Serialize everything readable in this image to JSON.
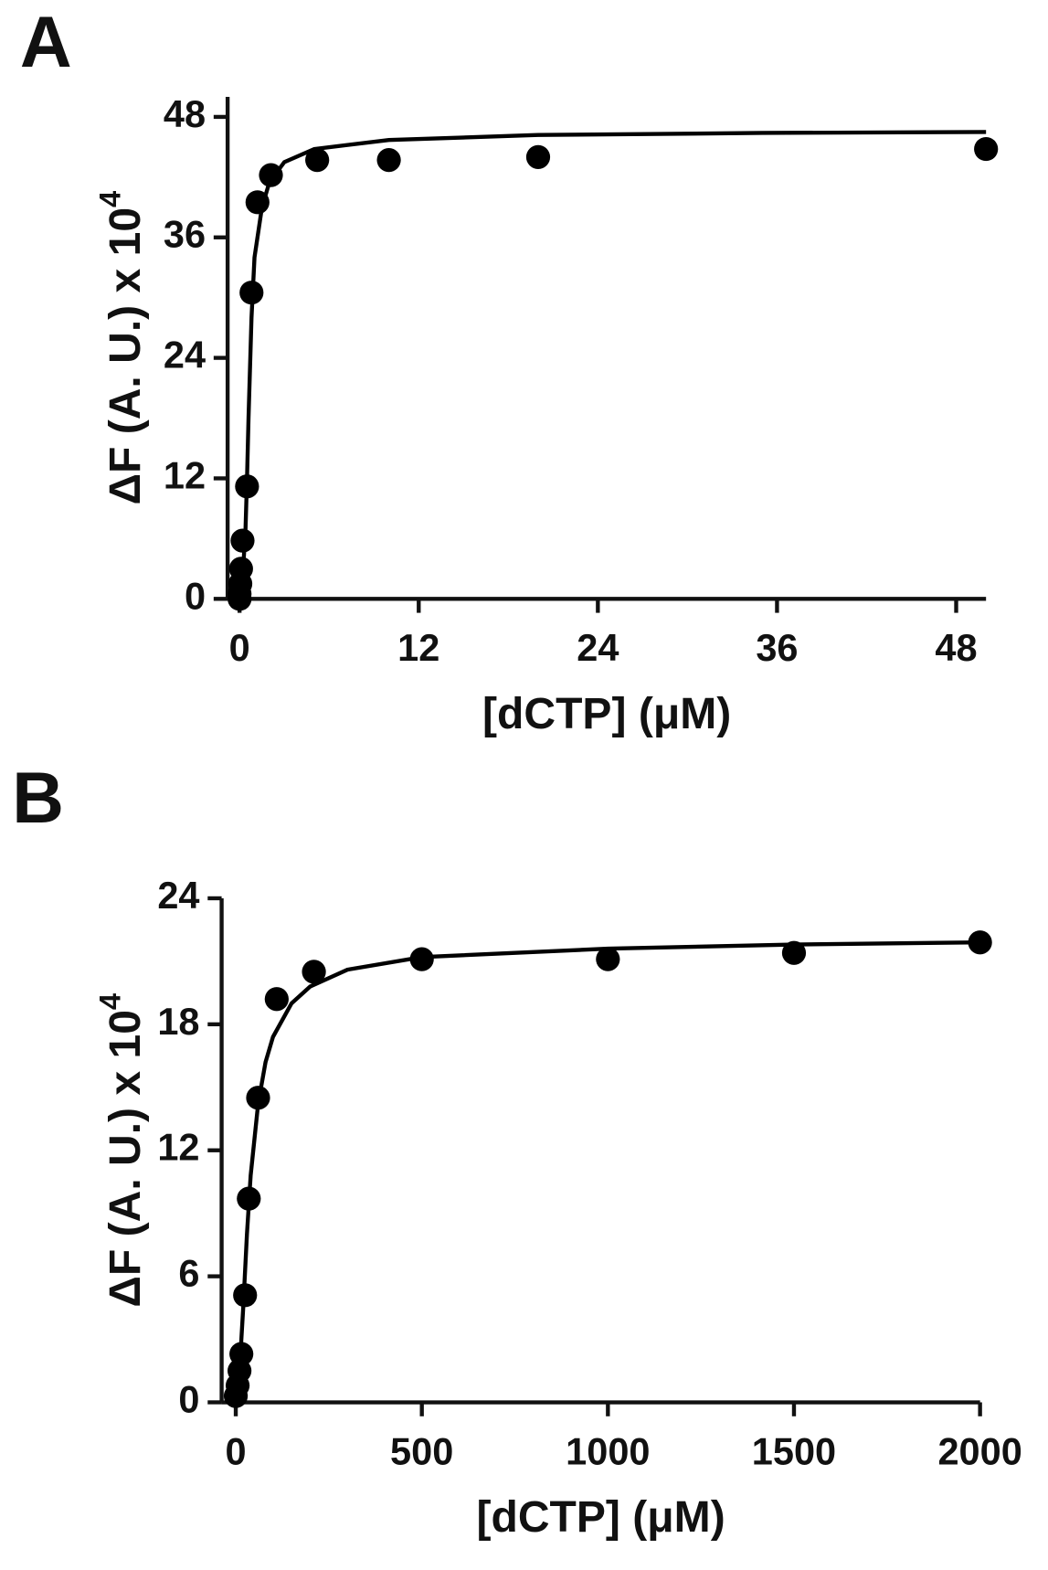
{
  "chart_data": [
    {
      "type": "scatter",
      "panel_label": "A",
      "x_label": "[dCTP] (μM)",
      "y_label": "ΔF (A. U.) x 10",
      "y_label_sup": "4",
      "color": "#000000",
      "x": [
        0,
        0,
        0.05,
        0.1,
        0.2,
        0.5,
        0.8,
        1.2,
        2.1,
        5.2,
        10,
        20,
        50
      ],
      "values": [
        0,
        0.5,
        1.5,
        3,
        5.8,
        11.2,
        30.5,
        39.5,
        42.2,
        43.7,
        43.7,
        44,
        44.8
      ],
      "fit": {
        "x": [
          0,
          0.2,
          0.4,
          0.5,
          0.6,
          0.8,
          1,
          1.5,
          2,
          3,
          5,
          10,
          20,
          35,
          50
        ],
        "values": [
          0,
          2,
          7,
          12,
          18,
          28,
          34,
          39,
          41.5,
          43.5,
          44.8,
          45.7,
          46.2,
          46.4,
          46.5
        ]
      },
      "xlim": [
        -0.8,
        50
      ],
      "ylim": [
        0,
        50
      ],
      "xticks": [
        0,
        12,
        24,
        36,
        48
      ],
      "yticks": [
        0,
        12,
        24,
        36,
        48
      ]
    },
    {
      "type": "scatter",
      "panel_label": "B",
      "x_label": "[dCTP] (μM)",
      "y_label": "ΔF (A. U.) x 10",
      "y_label_sup": "4",
      "color": "#000000",
      "x": [
        0,
        5,
        10,
        15,
        25,
        35,
        60,
        110,
        210,
        500,
        1000,
        1500,
        2000
      ],
      "values": [
        0.3,
        0.8,
        1.5,
        2.3,
        5.1,
        9.7,
        14.5,
        19.2,
        20.5,
        21.1,
        21.1,
        21.4,
        21.9
      ],
      "fit": {
        "x": [
          0,
          10,
          20,
          30,
          40,
          60,
          80,
          100,
          150,
          200,
          300,
          500,
          1000,
          1500,
          2000
        ],
        "values": [
          0,
          1.5,
          4.5,
          8,
          10.8,
          14.2,
          16.2,
          17.4,
          19,
          19.8,
          20.6,
          21.2,
          21.6,
          21.8,
          21.9
        ]
      },
      "xlim": [
        -38,
        2000
      ],
      "ylim": [
        0,
        24
      ],
      "xticks": [
        0,
        500,
        1000,
        1500,
        2000
      ],
      "yticks": [
        0,
        6,
        12,
        18,
        24
      ]
    }
  ]
}
